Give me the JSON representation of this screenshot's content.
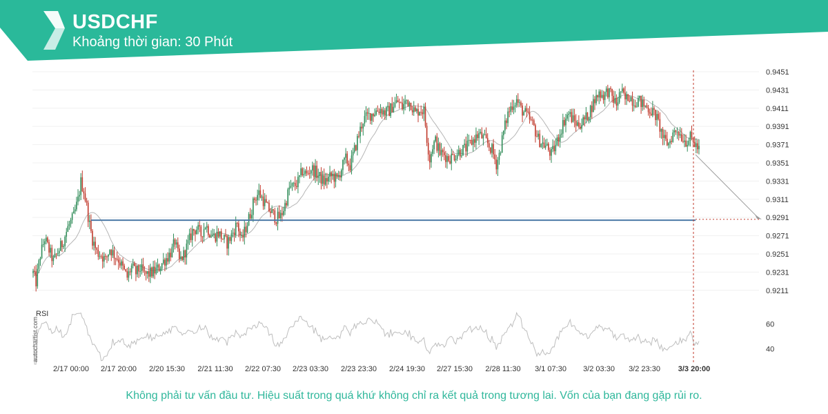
{
  "header": {
    "symbol": "USDCHF",
    "timeframe": "Khoảng thời gian: 30 Phút",
    "bg_color": "#2ab99a",
    "logo": "autochartist-logo-icon"
  },
  "disclaimer": "Không phải tư vấn đầu tư. Hiệu suất trong quá khứ không chỉ ra kết quả trong tương lai. Vốn của bạn đang gặp rủi ro.",
  "watermark": "autochartist.com",
  "chart_data": [
    {
      "type": "candlestick",
      "title": "",
      "y_ticks": [
        "0.9451",
        "0.9431",
        "0.9411",
        "0.9391",
        "0.9371",
        "0.9351",
        "0.9331",
        "0.9311",
        "0.9291",
        "0.9271",
        "0.9251",
        "0.9231",
        "0.9211"
      ],
      "ylim": [
        0.9201,
        0.9454
      ],
      "x_ticks": [
        "2/17 00:00",
        "2/17 20:00",
        "2/20 15:30",
        "2/21 11:30",
        "2/22 07:30",
        "2/23 03:30",
        "2/23 23:30",
        "2/24 19:30",
        "2/27 15:30",
        "2/28 11:30",
        "3/1 07:30",
        "3/2 03:30",
        "3/2 23:30",
        "3/3 20:00"
      ],
      "price_path": [
        [
          0,
          0.923
        ],
        [
          2,
          0.922
        ],
        [
          5,
          0.925
        ],
        [
          8,
          0.9268
        ],
        [
          11,
          0.9255
        ],
        [
          14,
          0.9243
        ],
        [
          17,
          0.9253
        ],
        [
          20,
          0.9262
        ],
        [
          24,
          0.928
        ],
        [
          28,
          0.9292
        ],
        [
          31,
          0.931
        ],
        [
          33,
          0.933
        ],
        [
          35,
          0.9321
        ],
        [
          37,
          0.9303
        ],
        [
          39,
          0.9283
        ],
        [
          41,
          0.9267
        ],
        [
          44,
          0.9253
        ],
        [
          47,
          0.925
        ],
        [
          50,
          0.9244
        ],
        [
          53,
          0.9257
        ],
        [
          56,
          0.925
        ],
        [
          59,
          0.9245
        ],
        [
          62,
          0.9235
        ],
        [
          65,
          0.9225
        ],
        [
          68,
          0.9237
        ],
        [
          71,
          0.923
        ],
        [
          74,
          0.9235
        ],
        [
          77,
          0.9228
        ],
        [
          80,
          0.9229
        ],
        [
          84,
          0.9232
        ],
        [
          87,
          0.9236
        ],
        [
          90,
          0.9243
        ],
        [
          93,
          0.9248
        ],
        [
          96,
          0.9255
        ],
        [
          98,
          0.9265
        ],
        [
          101,
          0.9243
        ],
        [
          104,
          0.925
        ],
        [
          107,
          0.9262
        ],
        [
          110,
          0.9276
        ],
        [
          113,
          0.9279
        ],
        [
          116,
          0.9272
        ],
        [
          119,
          0.9283
        ],
        [
          122,
          0.9275
        ],
        [
          125,
          0.927
        ],
        [
          128,
          0.9274
        ],
        [
          131,
          0.9268
        ],
        [
          134,
          0.9263
        ],
        [
          136,
          0.9268
        ],
        [
          139,
          0.9278
        ],
        [
          141,
          0.9285
        ],
        [
          144,
          0.9265
        ],
        [
          147,
          0.928
        ],
        [
          150,
          0.9295
        ],
        [
          153,
          0.9312
        ],
        [
          156,
          0.9318
        ],
        [
          159,
          0.931
        ],
        [
          162,
          0.9301
        ],
        [
          165,
          0.9296
        ],
        [
          168,
          0.929
        ],
        [
          171,
          0.9292
        ],
        [
          174,
          0.9305
        ],
        [
          177,
          0.9323
        ],
        [
          180,
          0.9325
        ],
        [
          183,
          0.933
        ],
        [
          186,
          0.9342
        ],
        [
          189,
          0.9338
        ],
        [
          192,
          0.9345
        ],
        [
          195,
          0.9341
        ],
        [
          198,
          0.9335
        ],
        [
          201,
          0.933
        ],
        [
          204,
          0.9334
        ],
        [
          207,
          0.9337
        ],
        [
          210,
          0.9332
        ],
        [
          213,
          0.9345
        ],
        [
          216,
          0.9355
        ],
        [
          219,
          0.9348
        ],
        [
          222,
          0.9365
        ],
        [
          225,
          0.9382
        ],
        [
          228,
          0.9398
        ],
        [
          231,
          0.9402
        ],
        [
          234,
          0.9405
        ],
        [
          237,
          0.9408
        ],
        [
          240,
          0.941
        ],
        [
          243,
          0.9406
        ],
        [
          246,
          0.9408
        ],
        [
          249,
          0.9415
        ],
        [
          252,
          0.9418
        ],
        [
          255,
          0.9412
        ],
        [
          258,
          0.942
        ],
        [
          261,
          0.9416
        ],
        [
          264,
          0.9405
        ],
        [
          267,
          0.941
        ],
        [
          270,
          0.9408
        ],
        [
          272,
          0.9378
        ],
        [
          274,
          0.9355
        ],
        [
          276,
          0.937
        ],
        [
          278,
          0.9375
        ],
        [
          281,
          0.9362
        ],
        [
          284,
          0.936
        ],
        [
          287,
          0.9356
        ],
        [
          290,
          0.9358
        ],
        [
          293,
          0.9362
        ],
        [
          296,
          0.9365
        ],
        [
          299,
          0.9367
        ],
        [
          302,
          0.9372
        ],
        [
          305,
          0.9378
        ],
        [
          308,
          0.9382
        ],
        [
          311,
          0.9378
        ],
        [
          314,
          0.9372
        ],
        [
          317,
          0.9365
        ],
        [
          320,
          0.935
        ],
        [
          322,
          0.936
        ],
        [
          325,
          0.9385
        ],
        [
          328,
          0.9405
        ],
        [
          331,
          0.9415
        ],
        [
          334,
          0.942
        ],
        [
          337,
          0.941
        ],
        [
          340,
          0.9405
        ],
        [
          343,
          0.9398
        ],
        [
          346,
          0.939
        ],
        [
          349,
          0.9377
        ],
        [
          352,
          0.9372
        ],
        [
          355,
          0.9368
        ],
        [
          358,
          0.936
        ],
        [
          361,
          0.937
        ],
        [
          364,
          0.9385
        ],
        [
          367,
          0.9398
        ],
        [
          370,
          0.9405
        ],
        [
          373,
          0.9398
        ],
        [
          376,
          0.9393
        ],
        [
          379,
          0.9395
        ],
        [
          382,
          0.94
        ],
        [
          385,
          0.941
        ],
        [
          388,
          0.942
        ],
        [
          391,
          0.9428
        ],
        [
          394,
          0.9425
        ],
        [
          397,
          0.943
        ],
        [
          400,
          0.9423
        ],
        [
          403,
          0.9415
        ],
        [
          406,
          0.943
        ],
        [
          409,
          0.942
        ],
        [
          412,
          0.9425
        ],
        [
          415,
          0.9418
        ],
        [
          418,
          0.942
        ],
        [
          421,
          0.9415
        ],
        [
          424,
          0.9412
        ],
        [
          427,
          0.9408
        ],
        [
          430,
          0.9403
        ],
        [
          433,
          0.939
        ],
        [
          436,
          0.9375
        ],
        [
          439,
          0.9372
        ],
        [
          442,
          0.9383
        ],
        [
          445,
          0.9388
        ],
        [
          448,
          0.938
        ],
        [
          451,
          0.9375
        ],
        [
          454,
          0.9378
        ],
        [
          457,
          0.9372
        ],
        [
          460,
          0.9365
        ]
      ],
      "series_colors": {
        "up": "#2e8b57",
        "down": "#c0392b",
        "ma": "#b5b5b5",
        "level": "#4a78a6",
        "forecast": "#9a9a9a"
      },
      "support_level": 0.9288,
      "forecast_target": 0.9289,
      "rsi": {
        "label": "RSI",
        "y_ticks": [
          "60",
          "40"
        ],
        "ylim": [
          33,
          72
        ]
      }
    }
  ]
}
